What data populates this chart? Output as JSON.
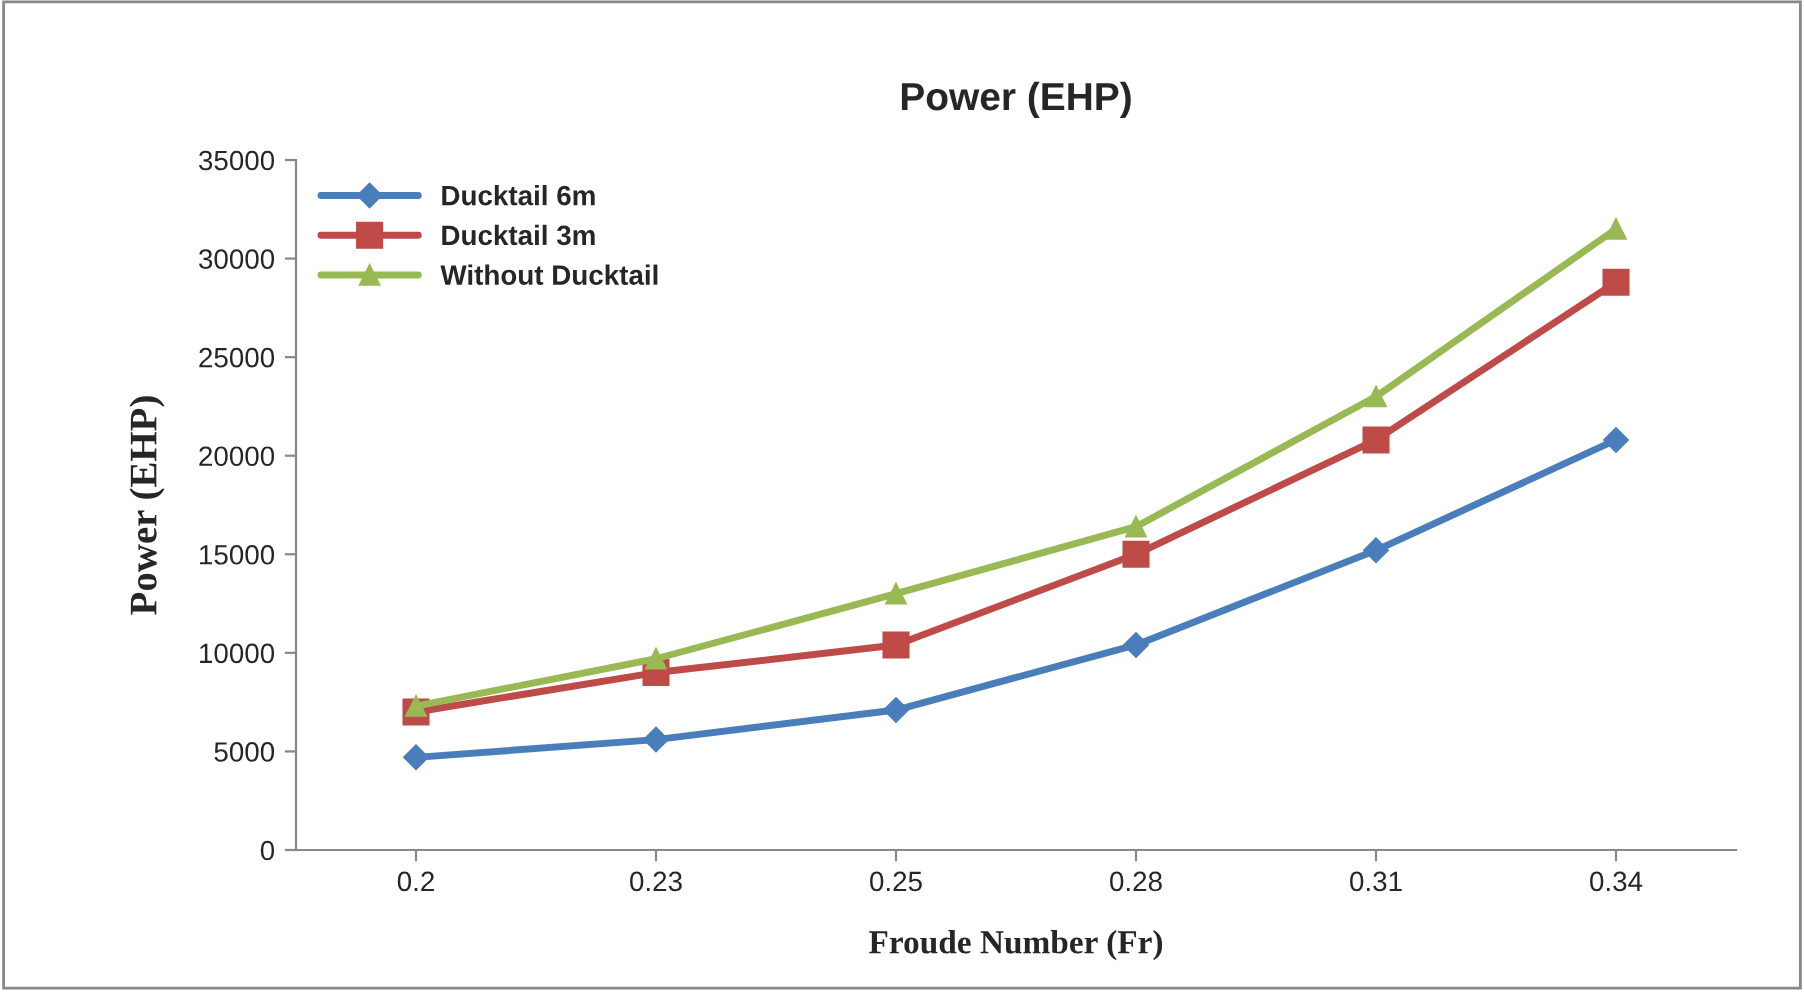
{
  "chart_data": {
    "type": "line",
    "title": "Power (EHP)",
    "xlabel": "Froude Number (Fr)",
    "ylabel": "Power (EHP)",
    "categories": [
      "0.2",
      "0.23",
      "0.25",
      "0.28",
      "0.31",
      "0.34"
    ],
    "series": [
      {
        "name": "Ducktail 6m",
        "color": "#4a7ebb",
        "marker": "diamond",
        "values": [
          4700,
          5600,
          7100,
          10400,
          15200,
          20800
        ]
      },
      {
        "name": "Ducktail 3m",
        "color": "#be4b48",
        "marker": "square",
        "values": [
          7000,
          9000,
          10400,
          15000,
          20800,
          28800
        ]
      },
      {
        "name": "Without Ducktail",
        "color": "#98b954",
        "marker": "triangle",
        "values": [
          7300,
          9700,
          13000,
          16400,
          23000,
          31500
        ]
      }
    ],
    "ylim": [
      0,
      35000
    ],
    "yticks": [
      0,
      5000,
      10000,
      15000,
      20000,
      25000,
      30000,
      35000
    ],
    "grid": false,
    "legend": "top left"
  }
}
